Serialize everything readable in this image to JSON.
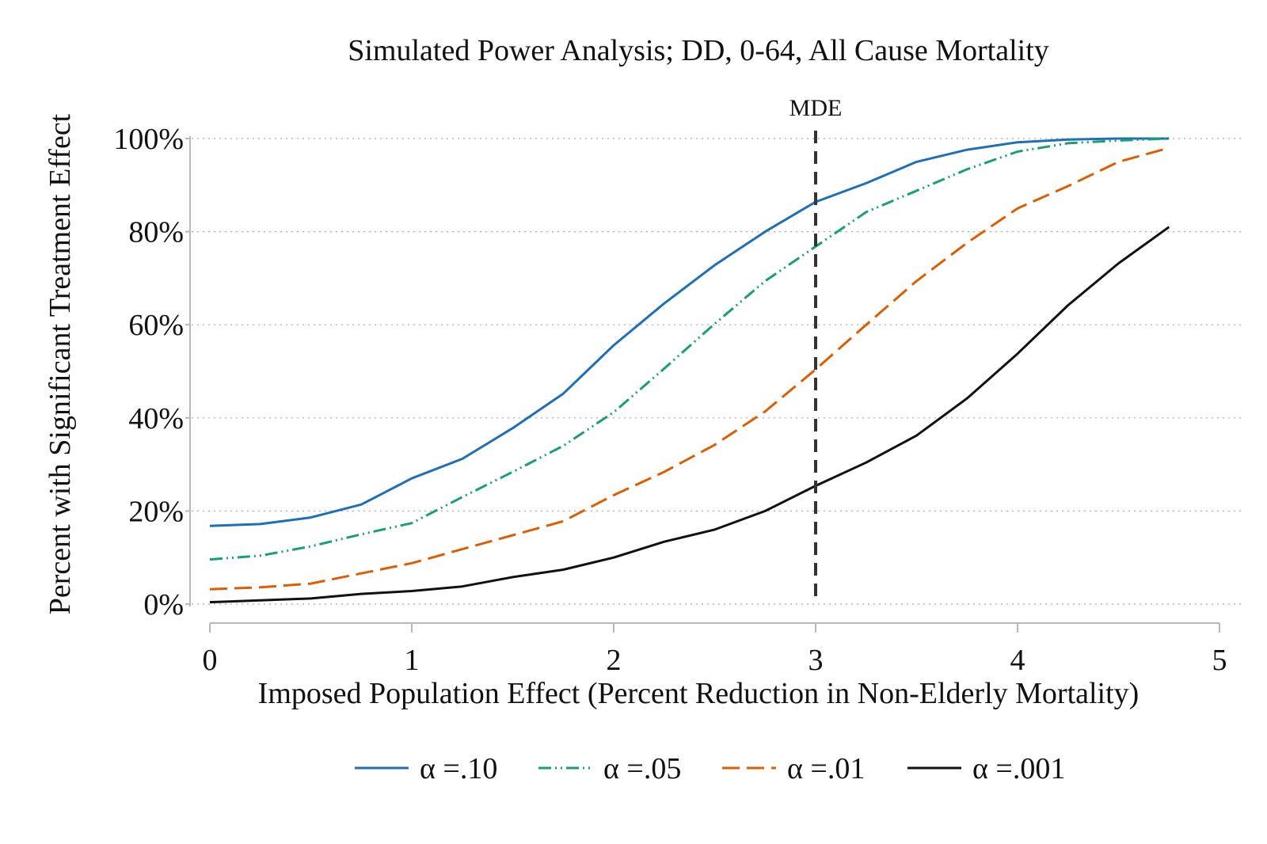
{
  "chart_data": {
    "type": "line",
    "title": "Simulated Power Analysis; DD, 0-64, All Cause Mortality",
    "xlabel": "Imposed Population Effect (Percent Reduction in Non-Elderly Mortality)",
    "ylabel": "Percent with Significant Treatment Effect",
    "xlim": [
      0,
      5
    ],
    "ylim": [
      0,
      100
    ],
    "x_ticks": [
      0,
      1,
      2,
      3,
      4,
      5
    ],
    "x_tick_labels": [
      "0",
      "1",
      "2",
      "3",
      "4",
      "5"
    ],
    "y_ticks": [
      0,
      20,
      40,
      60,
      80,
      100
    ],
    "y_tick_labels": [
      "0%",
      "20%",
      "40%",
      "60%",
      "80%",
      "100%"
    ],
    "grid": "horizontal dotted",
    "legend_position": "bottom",
    "reference_line": {
      "x": 3,
      "label": "MDE",
      "color": "#333333",
      "style": "dashed"
    },
    "x": [
      0,
      0.25,
      0.5,
      0.75,
      1,
      1.25,
      1.5,
      1.75,
      2,
      2.25,
      2.5,
      2.75,
      3,
      3.25,
      3.5,
      3.75,
      4,
      4.25,
      4.5,
      4.75
    ],
    "series": [
      {
        "name": "α =.10",
        "color": "#1f6fb4",
        "dash": "solid",
        "values": [
          16.8,
          17.2,
          18.6,
          21.4,
          27.0,
          31.2,
          37.8,
          45.2,
          55.6,
          64.6,
          72.8,
          80.0,
          86.4,
          90.4,
          95.0,
          97.6,
          99.2,
          99.8,
          100.0,
          100.0
        ]
      },
      {
        "name": "α =.05",
        "color": "#1a9e77",
        "dash": "dashdot",
        "values": [
          9.6,
          10.4,
          12.4,
          15.0,
          17.4,
          23.0,
          28.4,
          34.0,
          41.2,
          50.6,
          60.2,
          69.4,
          76.8,
          84.2,
          88.8,
          93.4,
          97.2,
          99.0,
          99.6,
          100.0
        ]
      },
      {
        "name": "α =.01",
        "color": "#d95f02",
        "dash": "longdash",
        "values": [
          3.2,
          3.6,
          4.4,
          6.6,
          8.8,
          11.8,
          14.8,
          17.8,
          23.4,
          28.4,
          34.2,
          41.4,
          50.4,
          60.0,
          69.4,
          77.6,
          85.0,
          89.8,
          95.0,
          98.0
        ]
      },
      {
        "name": "α =.001",
        "color": "#111111",
        "dash": "solid",
        "values": [
          0.4,
          0.8,
          1.2,
          2.2,
          2.8,
          3.8,
          5.8,
          7.4,
          10.0,
          13.4,
          16.0,
          20.0,
          25.4,
          30.4,
          36.2,
          44.2,
          53.8,
          64.2,
          73.2,
          81.0
        ]
      }
    ]
  }
}
